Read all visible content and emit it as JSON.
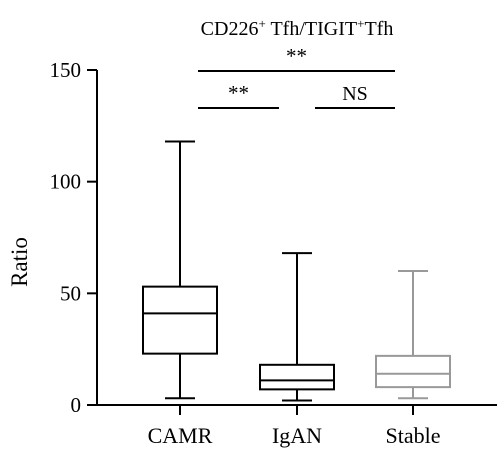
{
  "chart_data": {
    "type": "box",
    "title": {
      "parts": [
        "CD226",
        "+",
        " Tfh/TIGIT",
        "+",
        "Tfh"
      ]
    },
    "ylabel": "Ratio",
    "xlabel": "",
    "ylim": [
      0,
      150
    ],
    "yticks": [
      0,
      50,
      100,
      150
    ],
    "categories": [
      "CAMR",
      "IgAN",
      "Stable"
    ],
    "boxes": [
      {
        "name": "CAMR",
        "whisker_low": 3,
        "q1": 23,
        "median": 41,
        "q3": 53,
        "whisker_high": 118,
        "color": "#000000"
      },
      {
        "name": "IgAN",
        "whisker_low": 2,
        "q1": 7,
        "median": 11,
        "q3": 18,
        "whisker_high": 68,
        "color": "#000000"
      },
      {
        "name": "Stable",
        "whisker_low": 3,
        "q1": 8,
        "median": 14,
        "q3": 22,
        "whisker_high": 60,
        "color": "#999999"
      }
    ],
    "significance": [
      {
        "from": 0,
        "to": 1,
        "label": "**",
        "level": 1
      },
      {
        "from": 1,
        "to": 2,
        "label": "NS",
        "level": 1
      },
      {
        "from": 0,
        "to": 2,
        "label": "**",
        "level": 2
      }
    ],
    "grid": false,
    "legend": "none"
  }
}
